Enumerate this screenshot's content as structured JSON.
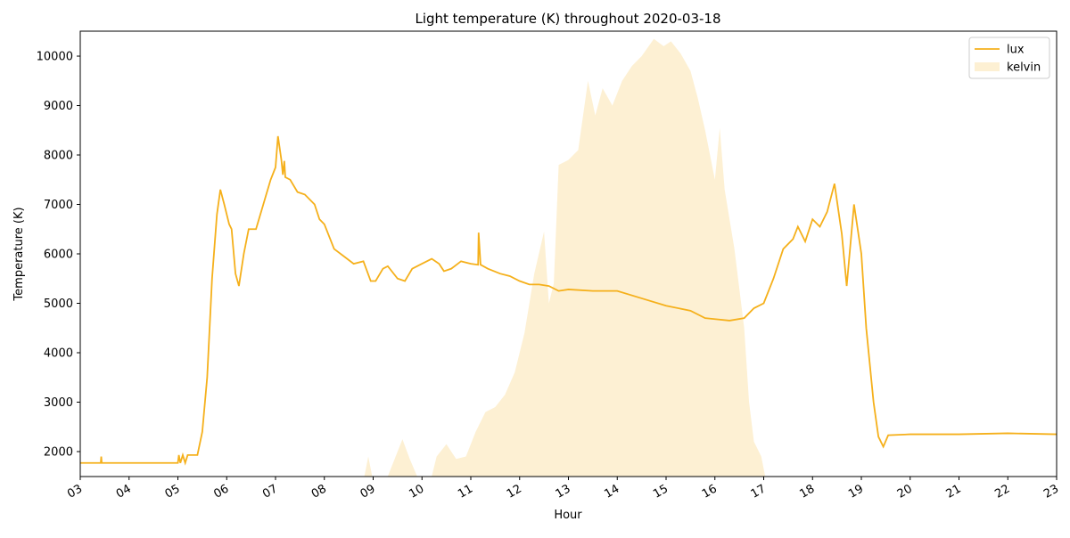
{
  "chart_data": {
    "type": "line-area",
    "title": "Light temperature (K) throughout 2020-03-18",
    "xlabel": "Hour",
    "ylabel": "Temperature (K)",
    "xlim": [
      3,
      23
    ],
    "xticks": [
      {
        "value": 3,
        "label": "03"
      },
      {
        "value": 4,
        "label": "04"
      },
      {
        "value": 5,
        "label": "05"
      },
      {
        "value": 6,
        "label": "06"
      },
      {
        "value": 7,
        "label": "07"
      },
      {
        "value": 8,
        "label": "08"
      },
      {
        "value": 9,
        "label": "09"
      },
      10,
      11,
      12,
      13,
      14,
      15,
      16,
      17,
      18,
      19,
      20,
      21,
      22,
      23
    ],
    "ylim": [
      1495,
      10505
    ],
    "yticks": [
      2000,
      3000,
      4000,
      5000,
      6000,
      7000,
      8000,
      9000,
      10000
    ],
    "legend": "upper right",
    "series": [
      {
        "name": "lux",
        "kind": "line",
        "color": "#f5b01b",
        "x": [
          3.0,
          3.42,
          3.43,
          3.44,
          4.0,
          4.5,
          5.0,
          5.02,
          5.05,
          5.1,
          5.15,
          5.2,
          5.4,
          5.5,
          5.6,
          5.7,
          5.8,
          5.87,
          5.95,
          6.05,
          6.1,
          6.18,
          6.25,
          6.35,
          6.45,
          6.6,
          6.75,
          6.9,
          7.0,
          7.05,
          7.12,
          7.15,
          7.18,
          7.2,
          7.3,
          7.45,
          7.6,
          7.8,
          7.9,
          8.0,
          8.2,
          8.4,
          8.6,
          8.8,
          8.95,
          9.05,
          9.2,
          9.3,
          9.5,
          9.65,
          9.8,
          10.0,
          10.2,
          10.35,
          10.45,
          10.6,
          10.8,
          11.0,
          11.15,
          11.16,
          11.2,
          11.35,
          11.6,
          11.8,
          12.0,
          12.2,
          12.4,
          12.6,
          12.8,
          13.0,
          13.5,
          14.0,
          14.5,
          15.0,
          15.5,
          15.8,
          16.0,
          16.3,
          16.6,
          16.8,
          17.0,
          17.2,
          17.4,
          17.6,
          17.7,
          17.85,
          18.0,
          18.15,
          18.3,
          18.45,
          18.6,
          18.7,
          18.85,
          19.0,
          19.1,
          19.25,
          19.35,
          19.45,
          19.55,
          20.0,
          21.0,
          22.0,
          23.0
        ],
        "values": [
          1770,
          1770,
          1900,
          1770,
          1770,
          1770,
          1770,
          1930,
          1770,
          1930,
          1770,
          1930,
          1930,
          2400,
          3500,
          5500,
          6800,
          7300,
          7000,
          6600,
          6500,
          5600,
          5350,
          6000,
          6500,
          6500,
          7000,
          7500,
          7750,
          8380,
          7900,
          7600,
          7880,
          7550,
          7500,
          7250,
          7200,
          7000,
          6700,
          6600,
          6100,
          5950,
          5800,
          5850,
          5450,
          5450,
          5700,
          5750,
          5500,
          5450,
          5700,
          5800,
          5900,
          5800,
          5650,
          5700,
          5850,
          5800,
          5780,
          6430,
          5780,
          5700,
          5600,
          5550,
          5450,
          5380,
          5380,
          5350,
          5250,
          5280,
          5250,
          5250,
          5100,
          4950,
          4850,
          4700,
          4680,
          4650,
          4700,
          4900,
          5000,
          5500,
          6100,
          6300,
          6550,
          6250,
          6700,
          6550,
          6850,
          7420,
          6400,
          5350,
          7000,
          6000,
          4500,
          3000,
          2300,
          2100,
          2330,
          2350,
          2350,
          2370,
          2350
        ]
      },
      {
        "name": "kelvin",
        "kind": "area",
        "color": "#fdf0d3",
        "x": [
          8.8,
          8.9,
          9.0,
          9.3,
          9.5,
          9.6,
          9.75,
          9.9,
          10.2,
          10.3,
          10.5,
          10.7,
          10.9,
          11.1,
          11.3,
          11.5,
          11.7,
          11.9,
          12.1,
          12.3,
          12.5,
          12.6,
          12.7,
          12.8,
          13.0,
          13.2,
          13.4,
          13.55,
          13.7,
          13.9,
          14.1,
          14.3,
          14.5,
          14.75,
          14.95,
          15.1,
          15.3,
          15.5,
          15.65,
          15.8,
          16.0,
          16.1,
          16.2,
          16.4,
          16.6,
          16.7,
          16.8,
          16.95,
          17.05
        ],
        "values": [
          1400,
          1900,
          1400,
          1500,
          2000,
          2250,
          1850,
          1500,
          1500,
          1900,
          2150,
          1850,
          1900,
          2400,
          2800,
          2900,
          3150,
          3600,
          4400,
          5600,
          6450,
          5000,
          5400,
          7800,
          7900,
          8100,
          9500,
          8800,
          9350,
          9000,
          9500,
          9800,
          10000,
          10350,
          10200,
          10300,
          10050,
          9700,
          9150,
          8500,
          7500,
          8550,
          7300,
          6100,
          4500,
          3000,
          2200,
          1900,
          1400
        ]
      }
    ]
  }
}
